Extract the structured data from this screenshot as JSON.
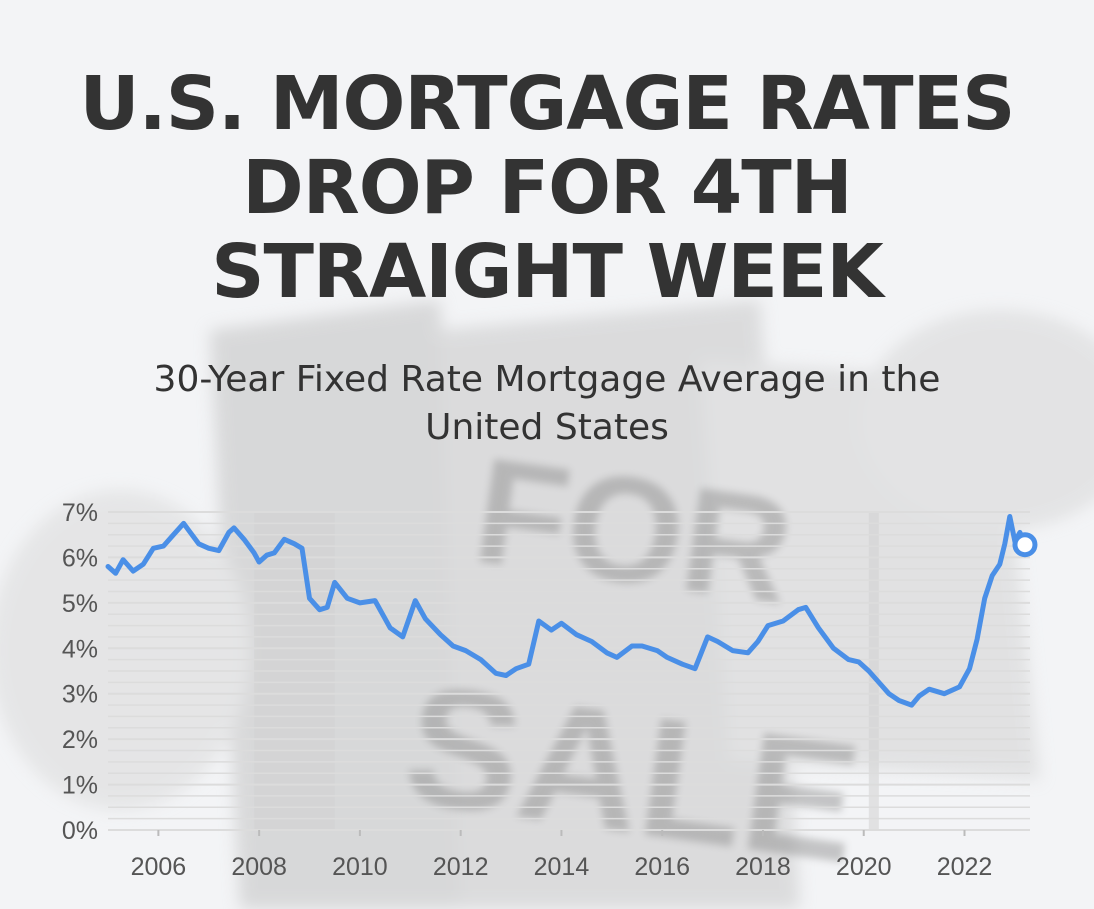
{
  "title_lines": [
    "U.S. MORTGAGE RATES",
    "DROP FOR 4TH",
    "STRAIGHT WEEK"
  ],
  "subtitle_lines": [
    "30-Year Fixed Rate Mortgage Average in the",
    "United States"
  ],
  "colors": {
    "line": "#4a8fe7",
    "text": "#333333",
    "axis_text": "#555555",
    "grid": "#dcdcdc",
    "recession": "#d2d2d2"
  },
  "chart_data": {
    "type": "line",
    "title": "30-Year Fixed Rate Mortgage Average in the United States",
    "xlabel": "",
    "ylabel": "",
    "ylim": [
      0,
      7
    ],
    "yticks": [
      "0%",
      "1%",
      "2%",
      "3%",
      "4%",
      "5%",
      "6%",
      "7%"
    ],
    "xticks": [
      "2006",
      "2008",
      "2010",
      "2012",
      "2014",
      "2016",
      "2018",
      "2020",
      "2022"
    ],
    "xtick_values": [
      2006,
      2008,
      2010,
      2012,
      2014,
      2016,
      2018,
      2020,
      2022
    ],
    "xlim": [
      2005,
      2023.3
    ],
    "grid": "horizontal",
    "shaded_periods": [
      [
        2007.9,
        2009.5
      ],
      [
        2020.1,
        2020.3
      ]
    ],
    "series": [
      {
        "x": [
          2005.0,
          2005.15,
          2005.3,
          2005.5,
          2005.7,
          2005.9,
          2006.1,
          2006.3,
          2006.5,
          2006.6,
          2006.8,
          2007.0,
          2007.2,
          2007.4,
          2007.5,
          2007.7,
          2007.9,
          2008.0,
          2008.15,
          2008.3,
          2008.5,
          2008.7,
          2008.85,
          2009.0,
          2009.2,
          2009.35,
          2009.5,
          2009.75,
          2010.0,
          2010.3,
          2010.6,
          2010.85,
          2011.1,
          2011.3,
          2011.6,
          2011.85,
          2012.1,
          2012.4,
          2012.7,
          2012.9,
          2013.1,
          2013.35,
          2013.55,
          2013.8,
          2014.0,
          2014.3,
          2014.6,
          2014.9,
          2015.1,
          2015.4,
          2015.6,
          2015.9,
          2016.1,
          2016.4,
          2016.65,
          2016.9,
          2017.1,
          2017.4,
          2017.7,
          2017.9,
          2018.1,
          2018.4,
          2018.7,
          2018.85,
          2019.1,
          2019.4,
          2019.7,
          2019.9,
          2020.1,
          2020.3,
          2020.5,
          2020.7,
          2020.95,
          2021.1,
          2021.3,
          2021.6,
          2021.9,
          2022.1,
          2022.25,
          2022.4,
          2022.55,
          2022.7,
          2022.8,
          2022.9,
          2023.0,
          2023.1,
          2023.2
        ],
        "values": [
          5.8,
          5.65,
          5.95,
          5.7,
          5.85,
          6.2,
          6.25,
          6.5,
          6.75,
          6.6,
          6.3,
          6.2,
          6.15,
          6.55,
          6.65,
          6.4,
          6.1,
          5.9,
          6.05,
          6.1,
          6.4,
          6.3,
          6.2,
          5.1,
          4.85,
          4.9,
          5.45,
          5.1,
          5.0,
          5.05,
          4.45,
          4.25,
          5.05,
          4.65,
          4.3,
          4.05,
          3.95,
          3.75,
          3.45,
          3.4,
          3.55,
          3.65,
          4.6,
          4.4,
          4.55,
          4.3,
          4.15,
          3.9,
          3.8,
          4.05,
          4.05,
          3.95,
          3.8,
          3.65,
          3.55,
          4.25,
          4.15,
          3.95,
          3.9,
          4.15,
          4.5,
          4.6,
          4.85,
          4.9,
          4.45,
          4.0,
          3.75,
          3.7,
          3.5,
          3.25,
          3.0,
          2.85,
          2.75,
          2.95,
          3.1,
          3.0,
          3.15,
          3.55,
          4.2,
          5.1,
          5.6,
          5.85,
          6.3,
          6.9,
          6.35,
          6.55,
          6.28
        ]
      }
    ],
    "last_point_marker": true
  }
}
